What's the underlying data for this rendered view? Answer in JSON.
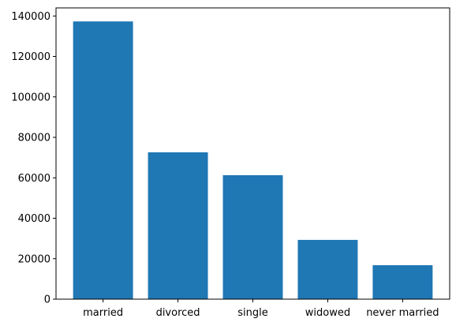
{
  "chart_data": {
    "type": "bar",
    "title": "",
    "xlabel": "",
    "ylabel": "",
    "categories": [
      "married",
      "divorced",
      "single",
      "widowed",
      "never married"
    ],
    "values": [
      137300,
      72600,
      61300,
      29300,
      16800
    ],
    "ylim": [
      0,
      144000
    ],
    "yticks": [
      0,
      20000,
      40000,
      60000,
      80000,
      100000,
      120000,
      140000
    ],
    "ytick_labels": [
      "0",
      "20000",
      "40000",
      "60000",
      "80000",
      "100000",
      "120000",
      "140000"
    ],
    "grid": false,
    "legend": "none",
    "bar_color": "#1f77b4"
  }
}
